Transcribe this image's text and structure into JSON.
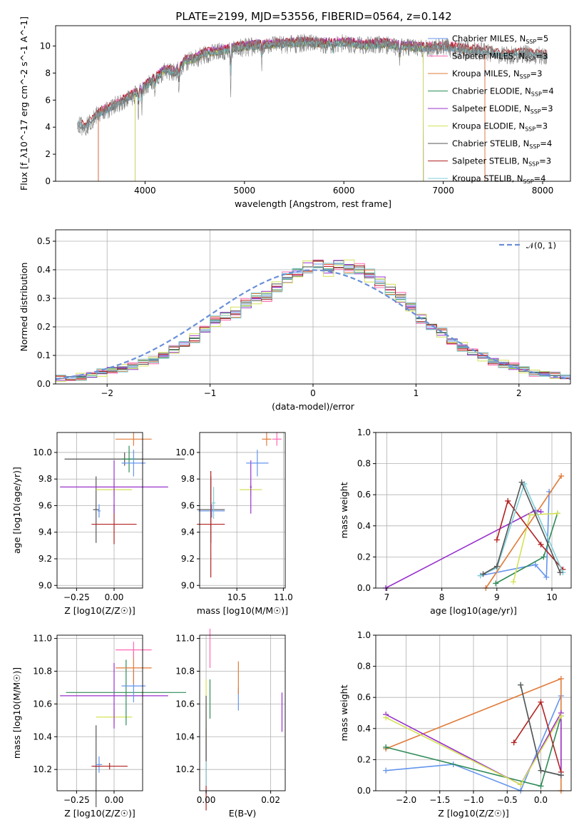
{
  "figure": {
    "title": "PLATE=2199, MJD=53556, FIBERID=0564, z=0.142"
  },
  "chart_data": [
    {
      "id": "spectrum",
      "type": "line",
      "xlabel": "wavelength [Angstrom, rest frame]",
      "ylabel": "Flux [f_λ10^-17 erg cm^-2 s^-1 A^-1]",
      "xlim": [
        3100,
        8280
      ],
      "ylim": [
        0,
        11.5
      ],
      "xticks": [
        "4000",
        "5000",
        "6000",
        "7000",
        "8000"
      ],
      "yticks": [
        "0",
        "2",
        "4",
        "6",
        "8",
        "10"
      ],
      "grid": false,
      "legend_position": "top-right",
      "series": [
        {
          "name": "Chabrier MILES, N_SSP=5",
          "color": "#6495ed",
          "range": [
            3530,
            7420
          ]
        },
        {
          "name": "Salpeter MILES, N_SSP=3",
          "color": "#ff69b4",
          "range": [
            3530,
            7420
          ]
        },
        {
          "name": "Kroupa MILES, N_SSP=3",
          "color": "#e07b39",
          "range": [
            3530,
            7420
          ]
        },
        {
          "name": "Chabrier ELODIE, N_SSP=4",
          "color": "#2e8b57",
          "range": [
            3900,
            6800
          ]
        },
        {
          "name": "Salpeter ELODIE, N_SSP=3",
          "color": "#9932cc",
          "range": [
            3900,
            6800
          ]
        },
        {
          "name": "Kroupa ELODIE, N_SSP=3",
          "color": "#d4e157",
          "range": [
            3900,
            6800
          ]
        },
        {
          "name": "Chabrier STELIB, N_SSP=4",
          "color": "#555555",
          "range": [
            3320,
            8050
          ]
        },
        {
          "name": "Salpeter STELIB, N_SSP=3",
          "color": "#b22222",
          "range": [
            3320,
            8050
          ]
        },
        {
          "name": "Kroupa STELIB, N_SSP=4",
          "color": "#7ecfd8",
          "range": [
            3320,
            8050
          ]
        }
      ],
      "observed_flux": {
        "name": "data",
        "color": "#808080",
        "x": [
          3320,
          3400,
          3500,
          3600,
          3700,
          3800,
          3900,
          4000,
          4100,
          4200,
          4300,
          4400,
          4500,
          4600,
          4700,
          4800,
          4900,
          5000,
          5200,
          5400,
          5600,
          5800,
          6000,
          6200,
          6400,
          6600,
          6800,
          7000,
          7200,
          7400,
          7600,
          7800,
          8000,
          8050
        ],
        "y": [
          4.2,
          4.0,
          4.8,
          5.2,
          5.6,
          6.0,
          6.4,
          7.0,
          7.5,
          8.2,
          8.0,
          8.8,
          9.0,
          9.4,
          9.5,
          9.6,
          9.8,
          9.9,
          10.0,
          10.1,
          10.2,
          10.1,
          10.2,
          10.0,
          10.1,
          9.9,
          9.8,
          9.9,
          9.7,
          9.6,
          9.3,
          9.4,
          9.3,
          9.2
        ]
      }
    },
    {
      "id": "residuals",
      "type": "histogram",
      "xlabel": "(data-model)/error",
      "ylabel": "Normed distribution",
      "xlim": [
        -2.5,
        2.5
      ],
      "ylim": [
        0,
        0.54
      ],
      "xticks": [
        "−2",
        "−1",
        "0",
        "1",
        "2"
      ],
      "yticks": [
        "0.0",
        "0.1",
        "0.2",
        "0.3",
        "0.4",
        "0.5"
      ],
      "grid": true,
      "legend_position": "top-right",
      "legend": [
        "𝒩(0, 1)"
      ],
      "bins": {
        "start": -2.5,
        "width": 0.1
      },
      "reference": {
        "name": "𝒩(0, 1)",
        "color": "#6a8fd8",
        "style": "dashed"
      },
      "series_colors": [
        "#6495ed",
        "#ff69b4",
        "#e07b39",
        "#2e8b57",
        "#9932cc",
        "#d4e157",
        "#555555",
        "#b22222",
        "#7ecfd8"
      ],
      "base_values": [
        0.02,
        0.02,
        0.025,
        0.03,
        0.04,
        0.05,
        0.055,
        0.06,
        0.075,
        0.085,
        0.1,
        0.12,
        0.14,
        0.16,
        0.19,
        0.22,
        0.24,
        0.25,
        0.28,
        0.3,
        0.31,
        0.34,
        0.37,
        0.39,
        0.41,
        0.42,
        0.4,
        0.42,
        0.41,
        0.4,
        0.38,
        0.36,
        0.33,
        0.3,
        0.27,
        0.23,
        0.2,
        0.18,
        0.15,
        0.13,
        0.11,
        0.095,
        0.08,
        0.07,
        0.06,
        0.05,
        0.04,
        0.035,
        0.03,
        0.025
      ]
    },
    {
      "id": "age_vs_Z",
      "type": "errorbar",
      "xlabel": "Z [log10(Z/Z☉)]",
      "ylabel": "age  [log10(age/yr)]",
      "xlim": [
        -0.38,
        0.19
      ],
      "ylim": [
        8.98,
        10.15
      ],
      "xticks": [
        "−0.25",
        "0.00"
      ],
      "yticks": [
        "9.0",
        "9.2",
        "9.4",
        "9.6",
        "9.8",
        "10.0"
      ],
      "grid": true,
      "points": [
        {
          "x": -0.12,
          "y": 9.57,
          "xerr": 0.02,
          "yerr": 0.25,
          "color": "#555555"
        },
        {
          "x": -0.1,
          "y": 9.56,
          "xerr": 0.01,
          "yerr": 0.05,
          "color": "#6495ed"
        },
        {
          "x": 0.0,
          "y": 9.46,
          "xerr": 0.15,
          "yerr": 0.15,
          "color": "#b22222"
        },
        {
          "x": 0.0,
          "y": 9.72,
          "xerr": 0.12,
          "yerr": 0.05,
          "color": "#d4e157"
        },
        {
          "x": 0.0,
          "y": 9.74,
          "xerr": 0.36,
          "yerr": 0.2,
          "color": "#9932cc"
        },
        {
          "x": 0.07,
          "y": 9.95,
          "xerr": 0.4,
          "yerr": 0.05,
          "color": "#555555"
        },
        {
          "x": 0.1,
          "y": 9.95,
          "xerr": 0.05,
          "yerr": 0.1,
          "color": "#2e8b57"
        },
        {
          "x": 0.13,
          "y": 9.92,
          "xerr": 0.08,
          "yerr": 0.1,
          "color": "#6495ed"
        },
        {
          "x": 0.13,
          "y": 10.1,
          "xerr": 0.12,
          "yerr": 0.05,
          "color": "#e07b39"
        }
      ]
    },
    {
      "id": "age_vs_mass",
      "type": "errorbar",
      "xlabel": "mass [log10(M/M☉)]",
      "ylabel": "",
      "xlim": [
        10.1,
        11.02
      ],
      "ylim": [
        8.98,
        10.15
      ],
      "xticks": [
        "10.5",
        "11.0"
      ],
      "yticks": [
        "9.0",
        "9.2",
        "9.4",
        "9.6",
        "9.8",
        "10.0"
      ],
      "grid": true,
      "points": [
        {
          "x": 10.22,
          "y": 9.57,
          "xerr": 0.15,
          "yerr": 0.25,
          "color": "#555555"
        },
        {
          "x": 10.23,
          "y": 9.56,
          "xerr": 0.14,
          "yerr": 0.05,
          "color": "#6495ed"
        },
        {
          "x": 10.25,
          "y": 9.62,
          "xerr": 0.02,
          "yerr": 0.12,
          "color": "#7ecfd8"
        },
        {
          "x": 10.22,
          "y": 9.46,
          "xerr": 0.15,
          "yerr": 0.4,
          "color": "#b22222"
        },
        {
          "x": 10.65,
          "y": 9.72,
          "xerr": 0.12,
          "yerr": 0.05,
          "color": "#d4e157"
        },
        {
          "x": 10.65,
          "y": 9.74,
          "xerr": 0.01,
          "yerr": 0.2,
          "color": "#9932cc"
        },
        {
          "x": 10.72,
          "y": 9.92,
          "xerr": 0.12,
          "yerr": 0.1,
          "color": "#6495ed"
        },
        {
          "x": 10.82,
          "y": 10.1,
          "xerr": 0.05,
          "yerr": 0.05,
          "color": "#e07b39"
        },
        {
          "x": 10.93,
          "y": 10.1,
          "xerr": 0.05,
          "yerr": 0.05,
          "color": "#ff69b4"
        }
      ]
    },
    {
      "id": "weight_vs_age",
      "type": "line",
      "xlabel": "age  [log10(age/yr)]",
      "ylabel": "mass weight",
      "xlim": [
        6.8,
        10.35
      ],
      "ylim": [
        0,
        1
      ],
      "xticks": [
        "7",
        "8",
        "9",
        "10"
      ],
      "yticks": [
        "0.0",
        "0.2",
        "0.4",
        "0.6",
        "0.8",
        "1.0"
      ],
      "grid": true,
      "series": [
        {
          "color": "#6495ed",
          "x": [
            8.7,
            9.7,
            9.9,
            9.95
          ],
          "y": [
            0.08,
            0.15,
            0.07,
            0.62
          ]
        },
        {
          "color": "#e07b39",
          "x": [
            8.8,
            10.17
          ],
          "y": [
            0.0,
            0.72
          ]
        },
        {
          "color": "#2e8b57",
          "x": [
            8.98,
            9.85,
            10.1
          ],
          "y": [
            0.03,
            0.2,
            0.48
          ]
        },
        {
          "color": "#9932cc",
          "x": [
            6.98,
            9.7,
            9.8
          ],
          "y": [
            0.0,
            0.5,
            0.49
          ]
        },
        {
          "color": "#d4e157",
          "x": [
            9.3,
            9.6,
            10.1
          ],
          "y": [
            0.04,
            0.47,
            0.48
          ]
        },
        {
          "color": "#b22222",
          "x": [
            9.0,
            9.2,
            9.8,
            10.2
          ],
          "y": [
            0.31,
            0.56,
            0.28,
            0.12
          ]
        },
        {
          "color": "#7ecfd8",
          "x": [
            8.7,
            9.0,
            9.5,
            10.2
          ],
          "y": [
            0.08,
            0.13,
            0.67,
            0.1
          ]
        },
        {
          "color": "#555555",
          "x": [
            8.75,
            9.0,
            9.45,
            10.15
          ],
          "y": [
            0.09,
            0.14,
            0.68,
            0.1
          ]
        }
      ]
    },
    {
      "id": "mass_vs_Z",
      "type": "errorbar",
      "xlabel": "Z [log10(Z/Z☉)]",
      "ylabel": "mass [log10(M/M☉)]",
      "xlim": [
        -0.38,
        0.19
      ],
      "ylim": [
        10.07,
        11.02
      ],
      "xticks": [
        "−0.25",
        "0.00"
      ],
      "yticks": [
        "10.2",
        "10.4",
        "10.6",
        "10.8",
        "11.0"
      ],
      "grid": true,
      "points": [
        {
          "x": -0.12,
          "y": 10.22,
          "xerr": 0.02,
          "yerr": 0.25,
          "color": "#555555"
        },
        {
          "x": -0.1,
          "y": 10.23,
          "xerr": 0.02,
          "yerr": 0.05,
          "color": "#6495ed"
        },
        {
          "x": -0.03,
          "y": 10.22,
          "xerr": 0.12,
          "yerr": 0.02,
          "color": "#b22222"
        },
        {
          "x": 0.0,
          "y": 10.52,
          "xerr": 0.12,
          "yerr": 0.05,
          "color": "#d4e157"
        },
        {
          "x": 0.0,
          "y": 10.65,
          "xerr": 0.36,
          "yerr": 0.2,
          "color": "#9932cc"
        },
        {
          "x": 0.08,
          "y": 10.67,
          "xerr": 0.4,
          "yerr": 0.2,
          "color": "#2e8b57"
        },
        {
          "x": 0.13,
          "y": 10.71,
          "xerr": 0.08,
          "yerr": 0.1,
          "color": "#6495ed"
        },
        {
          "x": 0.13,
          "y": 10.82,
          "xerr": 0.12,
          "yerr": 0.1,
          "color": "#e07b39"
        },
        {
          "x": 0.13,
          "y": 10.93,
          "xerr": 0.12,
          "yerr": 0.05,
          "color": "#ff69b4"
        }
      ]
    },
    {
      "id": "mass_vs_EBV",
      "type": "errorbar",
      "xlabel": "E(B-V)",
      "ylabel": "",
      "xlim": [
        -0.002,
        0.0245
      ],
      "ylim": [
        10.07,
        11.02
      ],
      "xticks": [
        "0.00",
        "0.02"
      ],
      "yticks": [
        "10.2",
        "10.4",
        "10.6",
        "10.8",
        "11.0"
      ],
      "grid": true,
      "points": [
        {
          "x": 0.0,
          "y": 10.2,
          "yerr": 0.25,
          "color": "#b22222"
        },
        {
          "x": 0.0,
          "y": 10.3,
          "yerr": 0.2,
          "color": "#7ecfd8"
        },
        {
          "x": 0.0,
          "y": 10.55,
          "yerr": 0.2,
          "color": "#d4e157"
        },
        {
          "x": 0.0,
          "y": 10.45,
          "yerr": 0.2,
          "color": "#555555"
        },
        {
          "x": 0.0012,
          "y": 10.63,
          "yerr": 0.12,
          "color": "#2e8b57"
        },
        {
          "x": 0.0012,
          "y": 10.94,
          "yerr": 0.12,
          "color": "#ff69b4"
        },
        {
          "x": 0.01,
          "y": 10.63,
          "yerr": 0.07,
          "color": "#6495ed"
        },
        {
          "x": 0.01,
          "y": 10.76,
          "yerr": 0.1,
          "color": "#e07b39"
        },
        {
          "x": 0.0235,
          "y": 10.55,
          "yerr": 0.12,
          "color": "#9932cc"
        }
      ]
    },
    {
      "id": "weight_vs_Z",
      "type": "line",
      "xlabel": "Z [log10(Z/Z☉)]",
      "ylabel": "mass weight",
      "xlim": [
        -2.45,
        0.45
      ],
      "ylim": [
        0,
        1
      ],
      "xticks": [
        "−2.0",
        "−1.5",
        "−1.0",
        "−0.5",
        "0.0"
      ],
      "yticks": [
        "0.0",
        "0.2",
        "0.4",
        "0.6",
        "0.8",
        "1.0"
      ],
      "grid": true,
      "series": [
        {
          "color": "#6495ed",
          "x": [
            -2.3,
            -1.3,
            -0.3,
            0.3
          ],
          "y": [
            0.13,
            0.17,
            0.0,
            0.61
          ]
        },
        {
          "color": "#e07b39",
          "x": [
            -2.3,
            0.3,
            0.3
          ],
          "y": [
            0.27,
            0.72,
            0.0
          ]
        },
        {
          "color": "#2e8b57",
          "x": [
            -2.3,
            0.0,
            0.3
          ],
          "y": [
            0.28,
            0.03,
            0.48
          ]
        },
        {
          "color": "#9932cc",
          "x": [
            -2.3,
            -0.3,
            0.3,
            0.3
          ],
          "y": [
            0.49,
            0.04,
            0.5,
            0.1
          ]
        },
        {
          "color": "#d4e157",
          "x": [
            -2.3,
            -0.3,
            0.3
          ],
          "y": [
            0.47,
            0.04,
            0.48
          ]
        },
        {
          "color": "#b22222",
          "x": [
            -0.4,
            0.0,
            0.3
          ],
          "y": [
            0.31,
            0.57,
            0.12
          ]
        },
        {
          "color": "#7ecfd8",
          "x": [
            -0.3,
            0.0,
            0.3
          ],
          "y": [
            0.68,
            0.13,
            0.1
          ]
        },
        {
          "color": "#555555",
          "x": [
            -0.3,
            0.0,
            0.3
          ],
          "y": [
            0.68,
            0.13,
            0.1
          ]
        }
      ]
    }
  ]
}
